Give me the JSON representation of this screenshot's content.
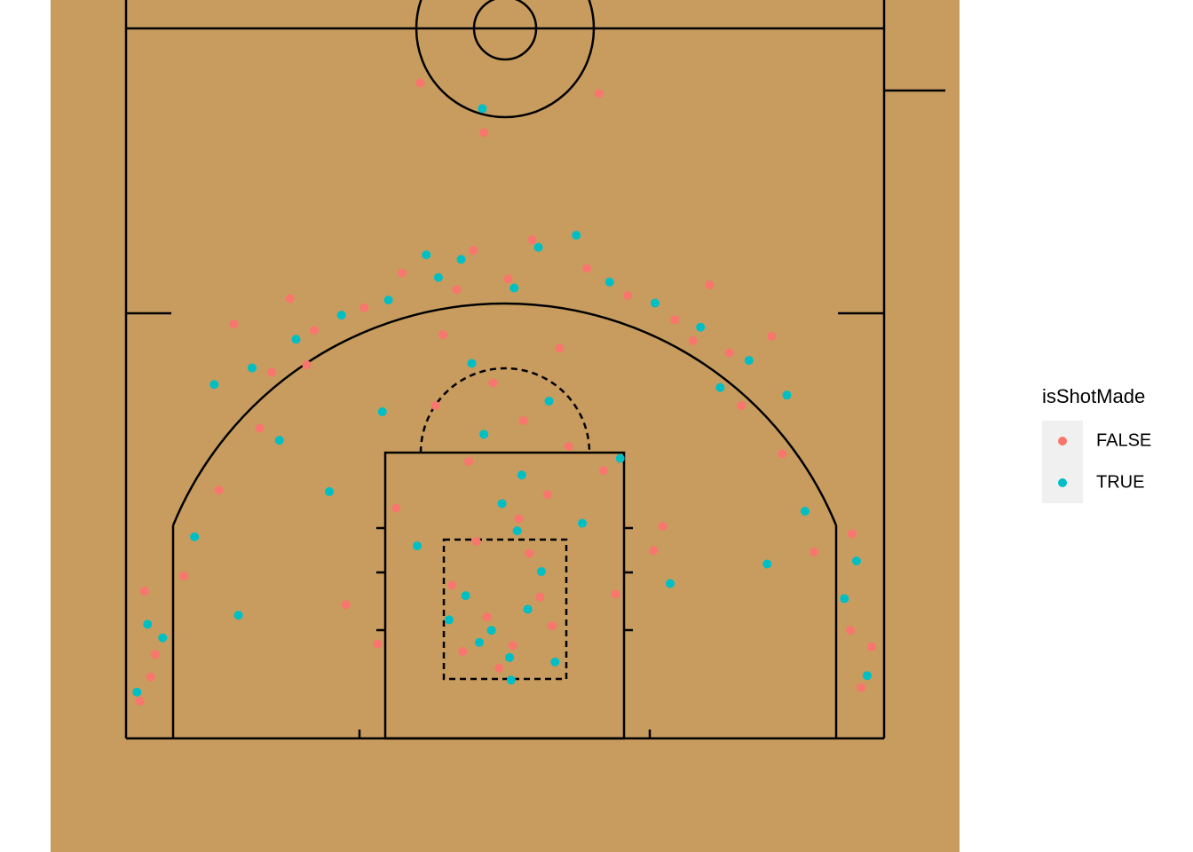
{
  "chart_data": {
    "type": "scatter",
    "legend_title": "isShotMade",
    "legend_position": "right",
    "xlim": [
      -30,
      30
    ],
    "ylim": [
      -7.5,
      49
    ],
    "series": [
      {
        "name": "FALSE",
        "color": "#F8766D",
        "x": [
          0.5,
          -1.2,
          2.3,
          -2.8,
          1.6,
          -0.4,
          3.1,
          -3.5,
          0.9,
          -1.9,
          2.8,
          -2.4,
          1.2,
          -0.8,
          4.2,
          -4.6,
          6.5,
          -7.2,
          9.8,
          -10.5,
          12.4,
          -13.1,
          15.6,
          -16.2,
          18.3,
          -18.9,
          20.4,
          -21.2,
          22.8,
          -23.1,
          23.5,
          -23.8,
          24.2,
          -24.1,
          22.9,
          -23.4,
          0.2,
          -3.2,
          5.4,
          -6.8,
          8.1,
          -9.3,
          11.2,
          -12.6,
          14.8,
          -15.4,
          3.6,
          -4.1,
          7.3,
          -8.4,
          1.8,
          -2.1,
          13.5,
          -14.2,
          17.6,
          -17.9,
          10.4,
          -1.4,
          -5.6,
          6.2
        ],
        "y": [
          6.2,
          8.1,
          9.4,
          5.8,
          12.3,
          4.7,
          7.5,
          10.2,
          14.6,
          13.1,
          16.2,
          18.4,
          21.1,
          23.6,
          19.4,
          22.1,
          17.8,
          15.3,
          12.5,
          8.9,
          26.4,
          24.8,
          22.1,
          20.6,
          18.9,
          16.5,
          12.4,
          10.8,
          7.2,
          5.6,
          3.4,
          9.8,
          6.1,
          2.5,
          13.6,
          4.1,
          30.5,
          29.8,
          31.2,
          30.9,
          29.4,
          28.6,
          27.8,
          27.1,
          25.6,
          24.3,
          25.9,
          26.8,
          9.6,
          6.3,
          33.1,
          32.4,
          30.1,
          29.2,
          26.7,
          27.5,
          14.1,
          40.2,
          43.5,
          42.8
        ]
      },
      {
        "name": "TRUE",
        "color": "#00BFC4",
        "x": [
          0.3,
          -0.9,
          1.5,
          -1.7,
          2.4,
          -2.6,
          0.8,
          -0.2,
          3.3,
          -3.7,
          1.1,
          -1.4,
          2.9,
          -2.2,
          5.1,
          -5.8,
          7.6,
          -8.1,
          10.9,
          -11.6,
          14.2,
          -14.9,
          17.3,
          -17.6,
          19.8,
          -20.5,
          22.4,
          -22.6,
          23.9,
          -24.3,
          23.2,
          -23.6,
          0.6,
          -4.4,
          6.9,
          -7.7,
          9.9,
          -10.8,
          12.9,
          -13.8,
          16.1,
          -16.7,
          2.2,
          -2.9,
          4.7,
          -5.2,
          18.6,
          -19.2,
          -1.5,
          0.4
        ],
        "y": [
          5.4,
          7.2,
          8.6,
          6.4,
          11.1,
          9.5,
          13.8,
          15.6,
          5.1,
          7.9,
          17.5,
          20.2,
          22.4,
          24.9,
          14.3,
          12.8,
          18.6,
          21.7,
          10.3,
          16.4,
          23.3,
          19.8,
          11.6,
          8.2,
          15.1,
          13.4,
          9.3,
          6.7,
          4.2,
          3.1,
          11.8,
          7.6,
          29.9,
          30.6,
          30.3,
          29.1,
          28.9,
          28.1,
          27.3,
          26.5,
          25.1,
          24.6,
          32.6,
          31.8,
          33.4,
          32.1,
          22.8,
          23.5,
          41.8,
          3.9
        ]
      }
    ]
  }
}
